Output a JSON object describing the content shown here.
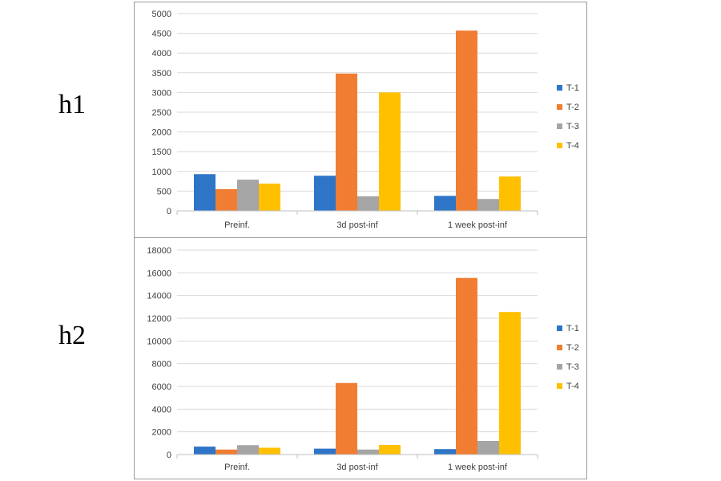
{
  "chart_data": [
    {
      "type": "bar",
      "panel_label": "h1",
      "title": "",
      "xlabel": "",
      "ylabel": "",
      "categories": [
        "Preinf.",
        "3d post-inf",
        "1 week post-inf"
      ],
      "ylim": [
        0,
        5000
      ],
      "yticks": [
        0,
        500,
        1000,
        1500,
        2000,
        2500,
        3000,
        3500,
        4000,
        4500,
        5000
      ],
      "grid": true,
      "legend": "right",
      "series": [
        {
          "name": "T-1",
          "color": "#2E75C8",
          "values": [
            930,
            890,
            380
          ]
        },
        {
          "name": "T-2",
          "color": "#F07D32",
          "values": [
            550,
            3480,
            4570
          ]
        },
        {
          "name": "T-3",
          "color": "#A5A5A5",
          "values": [
            790,
            370,
            300
          ]
        },
        {
          "name": "T-4",
          "color": "#FFC000",
          "values": [
            690,
            3000,
            870
          ]
        }
      ]
    },
    {
      "type": "bar",
      "panel_label": "h2",
      "title": "",
      "xlabel": "",
      "ylabel": "",
      "categories": [
        "Preinf.",
        "3d post-inf",
        "1 week post-inf"
      ],
      "ylim": [
        0,
        18000
      ],
      "yticks": [
        0,
        2000,
        4000,
        6000,
        8000,
        10000,
        12000,
        14000,
        16000,
        18000
      ],
      "grid": true,
      "legend": "right",
      "series": [
        {
          "name": "T-1",
          "color": "#2E75C8",
          "values": [
            700,
            520,
            480
          ]
        },
        {
          "name": "T-2",
          "color": "#F07D32",
          "values": [
            440,
            6300,
            15550
          ]
        },
        {
          "name": "T-3",
          "color": "#A5A5A5",
          "values": [
            830,
            440,
            1200
          ]
        },
        {
          "name": "T-4",
          "color": "#FFC000",
          "values": [
            600,
            850,
            12550
          ]
        }
      ]
    }
  ]
}
